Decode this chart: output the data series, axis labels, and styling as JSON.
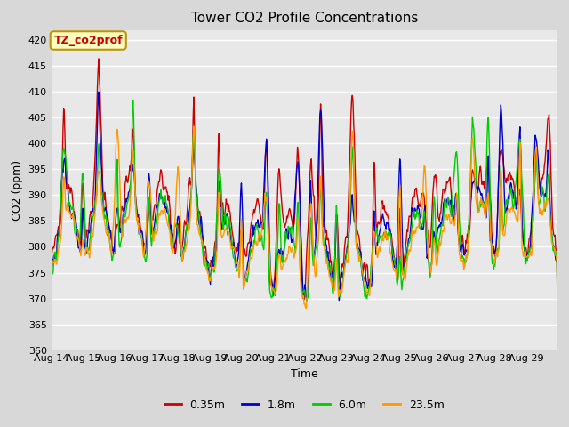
{
  "title": "Tower CO2 Profile Concentrations",
  "xlabel": "Time",
  "ylabel": "CO2 (ppm)",
  "ylim": [
    360,
    422
  ],
  "yticks": [
    360,
    365,
    370,
    375,
    380,
    385,
    390,
    395,
    400,
    405,
    410,
    415,
    420
  ],
  "fig_bg_color": "#d8d8d8",
  "plot_bg_color": "#e8e8e8",
  "legend_label": "TZ_co2prof",
  "legend_bg": "#ffffc0",
  "legend_edge": "#b8960c",
  "series": [
    {
      "label": "0.35m",
      "color": "#cc0000",
      "lw": 1.0
    },
    {
      "label": "1.8m",
      "color": "#0000cc",
      "lw": 1.0
    },
    {
      "label": "6.0m",
      "color": "#00cc00",
      "lw": 1.0
    },
    {
      "label": "23.5m",
      "color": "#ff9900",
      "lw": 1.0
    }
  ],
  "xticklabels": [
    "Aug 14",
    "Aug 15",
    "Aug 16",
    "Aug 17",
    "Aug 18",
    "Aug 19",
    "Aug 20",
    "Aug 21",
    "Aug 22",
    "Aug 23",
    "Aug 24",
    "Aug 25",
    "Aug 26",
    "Aug 27",
    "Aug 28",
    "Aug 29"
  ],
  "n_days": 16,
  "pts_per_day": 48,
  "base_co2": 380,
  "seed": 42,
  "title_fontsize": 11,
  "label_fontsize": 9,
  "tick_fontsize": 8
}
